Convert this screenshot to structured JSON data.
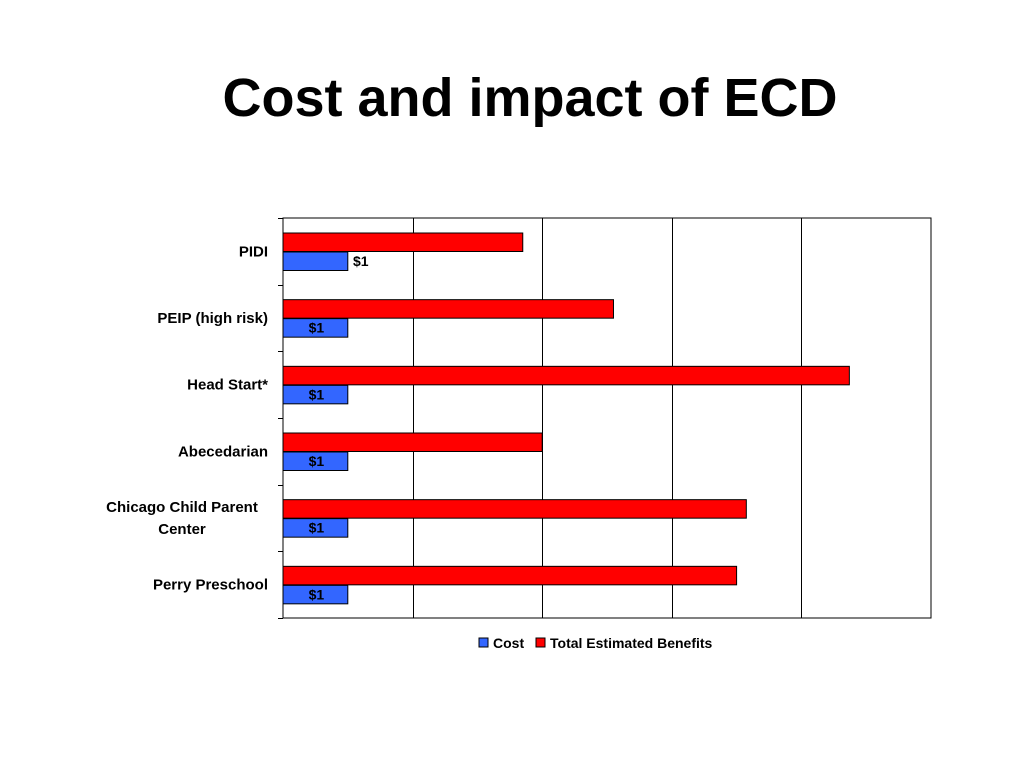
{
  "slide": {
    "title": "Cost and impact of ECD"
  },
  "colors": {
    "cost": "#3366FF",
    "benefits": "#FF0000"
  },
  "chart_data": {
    "type": "bar",
    "orientation": "horizontal",
    "categories": [
      "PIDI",
      "PEIP (high risk)",
      "Head Start*",
      "Abecedarian",
      "Chicago Child Parent Center",
      "Perry Preschool"
    ],
    "series": [
      {
        "name": "Total Estimated Benefits",
        "color": "#FF0000",
        "values": [
          3.7,
          5.1,
          8.74,
          4.0,
          7.15,
          7.0
        ]
      },
      {
        "name": "Cost",
        "color": "#3366FF",
        "values": [
          1,
          1,
          1,
          1,
          1,
          1
        ],
        "data_labels": [
          "$1",
          "$1",
          "$1",
          "$1",
          "$1",
          "$1"
        ]
      }
    ],
    "xlim": [
      0,
      10
    ],
    "x_gridlines": [
      2,
      4,
      6,
      8
    ],
    "grid": true,
    "tick_labels_shown": false,
    "legend": {
      "position": "bottom",
      "entries": [
        "Cost",
        "Total Estimated Benefits"
      ]
    },
    "title": "",
    "xlabel": "",
    "ylabel": ""
  }
}
